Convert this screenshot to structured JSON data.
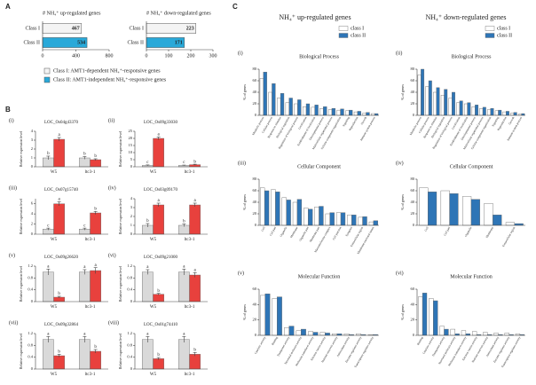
{
  "figure": {
    "panel_labels": [
      "A",
      "B",
      "C"
    ],
    "c_headers": [
      "NH₄⁺ up-regulated genes",
      "NH₄⁺ down-regulated genes"
    ],
    "a_legend": [
      "Class I: AMT1-dependent NH₄⁺-responsive genes",
      "Class II: AMT1-independent NH₄⁺-responsive genes"
    ],
    "a_legend_colors": [
      "#f4f4f4",
      "#29a9d9"
    ]
  },
  "chart_data": [
    {
      "type": "hbar",
      "title": "# NH₄⁺ up-regulated genes",
      "categories": [
        "Class I",
        "Class II"
      ],
      "values": [
        467,
        534
      ],
      "colors": [
        "#f4f4f4",
        "#29a9d9"
      ],
      "xlim": [
        0,
        800
      ],
      "xticks": [
        0,
        400,
        800
      ],
      "show_values": true
    },
    {
      "type": "hbar",
      "title": "# NH₄⁺ down-regulated genes",
      "categories": [
        "Class I",
        "Class II"
      ],
      "values": [
        223,
        171
      ],
      "colors": [
        "#f4f4f4",
        "#29a9d9"
      ],
      "xlim": [
        0,
        300
      ],
      "xticks": [
        0,
        100,
        200,
        300
      ],
      "show_values": true
    },
    {
      "type": "bar",
      "panel": "(i)",
      "title": "LOC_Os04g43370",
      "y_label": "Relative expression level",
      "categories": [
        "W5",
        "ltc3-1"
      ],
      "series": [
        {
          "color": "#d9d9d9",
          "values": [
            1,
            1
          ],
          "errors": [
            0.2,
            0.15
          ],
          "letters": [
            "b",
            "b"
          ]
        },
        {
          "color": "#e8413d",
          "values": [
            3.1,
            0.8
          ],
          "errors": [
            0.2,
            0.1
          ],
          "letters": [
            "a",
            "b"
          ]
        }
      ],
      "ylim": [
        0,
        4
      ],
      "yticks": [
        0,
        1,
        2,
        3,
        4
      ]
    },
    {
      "type": "bar",
      "panel": "(ii)",
      "title": "LOC_Os09g33030",
      "y_label": "Relative expression level",
      "categories": [
        "W5",
        "ltc3-1"
      ],
      "series": [
        {
          "color": "#d9d9d9",
          "values": [
            1,
            1
          ],
          "errors": [
            0.3,
            0.2
          ],
          "letters": [
            "c",
            "c"
          ]
        },
        {
          "color": "#e8413d",
          "values": [
            20,
            1.5
          ],
          "errors": [
            1,
            0.3
          ],
          "letters": [
            "a",
            "b"
          ]
        }
      ],
      "ylim": [
        0,
        25
      ],
      "yticks": [
        0,
        5,
        10,
        15,
        20,
        25
      ]
    },
    {
      "type": "bar",
      "panel": "(iii)",
      "title": "LOC_Os07g15740",
      "y_label": "Relative expression level",
      "categories": [
        "W5",
        "ltc3-1"
      ],
      "series": [
        {
          "color": "#d9d9d9",
          "values": [
            1,
            1
          ],
          "errors": [
            0.2,
            0.2
          ],
          "letters": [
            "c",
            "c"
          ]
        },
        {
          "color": "#e8413d",
          "values": [
            6,
            4.2
          ],
          "errors": [
            0.4,
            0.3
          ],
          "letters": [
            "a",
            "b"
          ]
        }
      ],
      "ylim": [
        0,
        7
      ],
      "yticks": [
        0,
        2,
        4,
        6
      ]
    },
    {
      "type": "bar",
      "panel": "(iv)",
      "title": "LOC_Os03g09170",
      "y_label": "Relative expression level",
      "categories": [
        "W5",
        "ltc3-1"
      ],
      "series": [
        {
          "color": "#d9d9d9",
          "values": [
            1,
            1
          ],
          "errors": [
            0.2,
            0.15
          ],
          "letters": [
            "b",
            "b"
          ]
        },
        {
          "color": "#e8413d",
          "values": [
            3.3,
            3.3
          ],
          "errors": [
            0.2,
            0.2
          ],
          "letters": [
            "a",
            "a"
          ]
        }
      ],
      "ylim": [
        0,
        4
      ],
      "yticks": [
        0,
        1,
        2,
        3,
        4
      ]
    },
    {
      "type": "bar",
      "panel": "(v)",
      "title": "LOC_Os09g26620",
      "y_label": "Relative expression level",
      "categories": [
        "W5",
        "ltc3-1"
      ],
      "series": [
        {
          "color": "#d9d9d9",
          "values": [
            1,
            1
          ],
          "errors": [
            0.1,
            0.08
          ],
          "letters": [
            "a",
            "a"
          ]
        },
        {
          "color": "#e8413d",
          "values": [
            0.15,
            1.05
          ],
          "errors": [
            0.03,
            0.1
          ],
          "letters": [
            "b",
            "a"
          ]
        }
      ],
      "ylim": [
        0,
        1.2
      ],
      "yticks": [
        0,
        0.4,
        0.8,
        1.2
      ]
    },
    {
      "type": "bar",
      "panel": "(vi)",
      "title": "LOC_Os09g21000",
      "y_label": "Relative expression level",
      "categories": [
        "W5",
        "ltc3-1"
      ],
      "series": [
        {
          "color": "#d9d9d9",
          "values": [
            1,
            1
          ],
          "errors": [
            0.08,
            0.1
          ],
          "letters": [
            "a",
            "a"
          ]
        },
        {
          "color": "#e8413d",
          "values": [
            0.25,
            0.9
          ],
          "errors": [
            0.03,
            0.08
          ],
          "letters": [
            "b",
            "a"
          ]
        }
      ],
      "ylim": [
        0,
        1.2
      ],
      "yticks": [
        0,
        0.4,
        0.8,
        1.2
      ]
    },
    {
      "type": "bar",
      "panel": "(vii)",
      "title": "LOC_Os09g32864",
      "y_label": "Relative expression level",
      "categories": [
        "W5",
        "ltc3-1"
      ],
      "series": [
        {
          "color": "#d9d9d9",
          "values": [
            1,
            1
          ],
          "errors": [
            0.1,
            0.1
          ],
          "letters": [
            "a",
            "a"
          ]
        },
        {
          "color": "#e8413d",
          "values": [
            0.45,
            0.6
          ],
          "errors": [
            0.05,
            0.06
          ],
          "letters": [
            "b",
            "b"
          ]
        }
      ],
      "ylim": [
        0,
        1.2
      ],
      "yticks": [
        0,
        0.4,
        0.8,
        1.2
      ]
    },
    {
      "type": "bar",
      "panel": "(viii)",
      "title": "LOC_Os01g74410",
      "y_label": "Relative expression level",
      "categories": [
        "W5",
        "ltc3-1"
      ],
      "series": [
        {
          "color": "#d9d9d9",
          "values": [
            1,
            1
          ],
          "errors": [
            0.1,
            0.1
          ],
          "letters": [
            "a",
            "a"
          ]
        },
        {
          "color": "#e8413d",
          "values": [
            0.35,
            0.5
          ],
          "errors": [
            0.04,
            0.06
          ],
          "letters": [
            "b",
            "b"
          ]
        }
      ],
      "ylim": [
        0,
        1.2
      ],
      "yticks": [
        0,
        0.4,
        0.8,
        1.2
      ]
    },
    {
      "type": "bar",
      "panel": "(i)",
      "title": "Biological Process",
      "y_label": "% of genes",
      "legend": "top-right",
      "categories": [
        "Metabolic process",
        "Cellular process",
        "Response to stimulus",
        "Biological regulation",
        "Regulation of biological process",
        "Localization",
        "Establishment of localization",
        "Developmental process",
        "Multicellular organismal process",
        "Cellular component organization",
        "Signaling",
        "Reproduction",
        "Growth",
        "Immune system process"
      ],
      "series": [
        {
          "name": "class I",
          "color": "#ffffff",
          "values": [
            64,
            40,
            30,
            22,
            20,
            15,
            14,
            12,
            10,
            9,
            8,
            6,
            4,
            3
          ]
        },
        {
          "name": "class II",
          "color": "#2e75b6",
          "values": [
            75,
            55,
            38,
            30,
            27,
            20,
            18,
            15,
            12,
            11,
            9,
            7,
            5,
            3
          ]
        }
      ],
      "ylim": [
        0,
        80
      ],
      "yticks": [
        0,
        20,
        40,
        60,
        80
      ]
    },
    {
      "type": "bar",
      "panel": "(ii)",
      "title": "Biological Process",
      "y_label": "% of genes",
      "legend": "top-right",
      "categories": [
        "Metabolic process",
        "Cellular process",
        "Response to stimulus",
        "Biological regulation",
        "Regulation of biological process",
        "Localization",
        "Establishment of localization",
        "Developmental process",
        "Multicellular organismal process",
        "Cellular component organization",
        "Signaling",
        "Reproduction",
        "Growth",
        "Immune system process"
      ],
      "series": [
        {
          "name": "class I",
          "color": "#ffffff",
          "values": [
            70,
            50,
            40,
            35,
            30,
            22,
            20,
            15,
            12,
            10,
            8,
            6,
            4,
            2
          ]
        },
        {
          "name": "class II",
          "color": "#2e75b6",
          "values": [
            80,
            60,
            48,
            45,
            40,
            25,
            22,
            18,
            14,
            12,
            9,
            7,
            5,
            3
          ]
        }
      ],
      "ylim": [
        0,
        80
      ],
      "yticks": [
        0,
        20,
        40,
        60,
        80
      ]
    },
    {
      "type": "bar",
      "panel": "(iii)",
      "title": "Cellular Component",
      "y_label": "% of genes",
      "categories": [
        "Cell",
        "Cell part",
        "Organelle",
        "Membrane",
        "Organelle part",
        "Membrane part",
        "Macromolecular complex",
        "Cell junction",
        "Symplast",
        "Extracellular region",
        "Membrane-enclosed lumen"
      ],
      "series": [
        {
          "name": "class I",
          "color": "#ffffff",
          "values": [
            65,
            62,
            48,
            40,
            30,
            32,
            20,
            22,
            18,
            14,
            6
          ]
        },
        {
          "name": "class II",
          "color": "#2e75b6",
          "values": [
            60,
            58,
            44,
            45,
            28,
            33,
            22,
            22,
            18,
            15,
            8
          ]
        }
      ],
      "ylim": [
        0,
        80
      ],
      "yticks": [
        0,
        20,
        40,
        60,
        80
      ]
    },
    {
      "type": "bar",
      "panel": "(iv)",
      "title": "Cellular Component",
      "y_label": "% of genes",
      "categories": [
        "Cell",
        "Cell part",
        "Organelle",
        "Membrane",
        "Extracellular region"
      ],
      "series": [
        {
          "name": "class I",
          "color": "#ffffff",
          "values": [
            65,
            60,
            50,
            38,
            5
          ]
        },
        {
          "name": "class II",
          "color": "#2e75b6",
          "values": [
            58,
            55,
            45,
            18,
            3
          ]
        }
      ],
      "ylim": [
        0,
        80
      ],
      "yticks": [
        0,
        20,
        40,
        60,
        80
      ]
    },
    {
      "type": "bar",
      "panel": "(v)",
      "title": "Molecular Function",
      "y_label": "% of genes",
      "categories": [
        "Catalytic activity",
        "Binding",
        "Transporter activity",
        "Structural molecule activity",
        "Molecular transducer activity",
        "Electron carrier activity",
        "Nutrient reservoir activity",
        "Antioxidant activity",
        "Enzyme regulator activity",
        "Transcription regulator activity"
      ],
      "series": [
        {
          "name": "class I",
          "color": "#ffffff",
          "values": [
            52,
            48,
            10,
            6,
            5,
            4,
            2,
            2,
            2,
            1
          ]
        },
        {
          "name": "class II",
          "color": "#2e75b6",
          "values": [
            54,
            50,
            12,
            8,
            4,
            3,
            2,
            1,
            1,
            1
          ]
        }
      ],
      "ylim": [
        0,
        60
      ],
      "yticks": [
        0,
        20,
        40,
        60
      ]
    },
    {
      "type": "bar",
      "panel": "(vi)",
      "title": "Molecular Function",
      "y_label": "% of genes",
      "categories": [
        "Binding",
        "Catalytic activity",
        "Transporter activity",
        "Structural molecule activity",
        "Molecular transducer activity",
        "Electron carrier activity",
        "Nutrient reservoir activity",
        "Antioxidant activity",
        "Enzyme regulator activity",
        "Transcription regulator activity"
      ],
      "series": [
        {
          "name": "class I",
          "color": "#ffffff",
          "values": [
            50,
            48,
            12,
            8,
            6,
            5,
            4,
            3,
            3,
            2
          ]
        },
        {
          "name": "class II",
          "color": "#2e75b6",
          "values": [
            55,
            45,
            8,
            2,
            2,
            1,
            1,
            1,
            1,
            1
          ]
        }
      ],
      "ylim": [
        0,
        60
      ],
      "yticks": [
        0,
        20,
        40,
        60
      ]
    }
  ]
}
